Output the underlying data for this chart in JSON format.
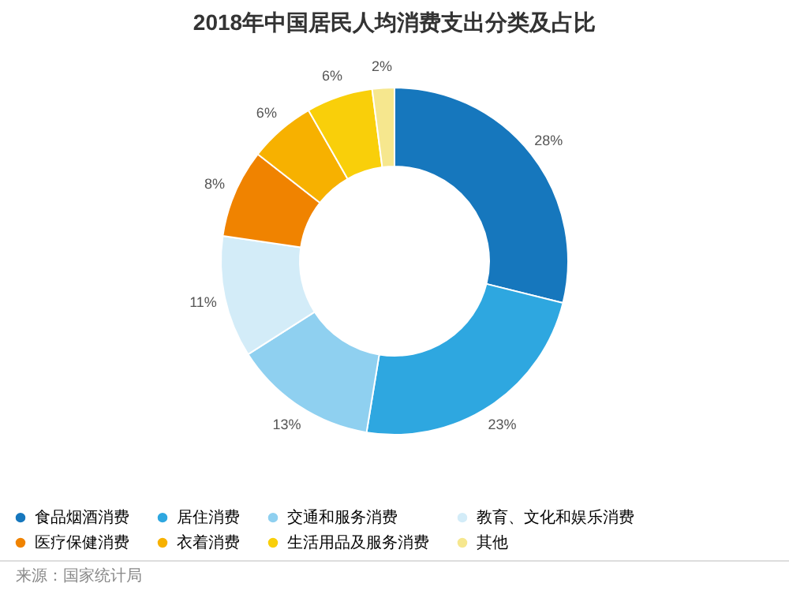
{
  "chart_data": {
    "type": "donut",
    "title": "2018年中国居民人均消费支出分类及占比",
    "categories": [
      "食品烟酒消费",
      "居住消费",
      "交通和服务消费",
      "教育、文化和娱乐消费",
      "医疗保健消费",
      "衣着消费",
      "生活用品及服务消费",
      "其他"
    ],
    "values": [
      28,
      23,
      13,
      11,
      8,
      6,
      6,
      2
    ],
    "value_labels": [
      "28%",
      "23%",
      "13%",
      "11%",
      "8%",
      "6%",
      "6%",
      "2%"
    ],
    "colors": [
      "#1677bd",
      "#2ea7e0",
      "#8fd0f0",
      "#d3ecf8",
      "#f08300",
      "#f7b100",
      "#f9cf0a",
      "#f6e78e"
    ],
    "legend": "bottom",
    "annotations": [
      "来源：国家统计局"
    ]
  }
}
